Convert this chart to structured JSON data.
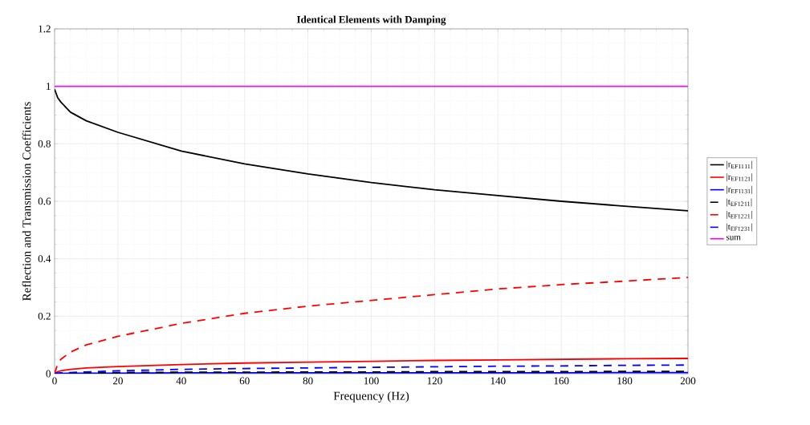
{
  "chart_data": {
    "type": "line",
    "title": "Identical Elements with Damping",
    "xlabel": "Frequency (Hz)",
    "ylabel": "Reflection and Transmission Coefficients",
    "xlim": [
      0,
      200
    ],
    "ylim": [
      0,
      1.2
    ],
    "xticks": [
      0,
      20,
      40,
      60,
      80,
      100,
      120,
      140,
      160,
      180,
      200
    ],
    "yticks": [
      0,
      0.2,
      0.4,
      0.6,
      0.8,
      1,
      1.2
    ],
    "grid": true,
    "legend": "right",
    "x": [
      0,
      1,
      2,
      5,
      10,
      20,
      40,
      60,
      80,
      100,
      120,
      140,
      160,
      180,
      200
    ],
    "series": [
      {
        "name": "|r$_{EF11}$$_{11}$|",
        "color": "#000000",
        "line_style": "solid",
        "values": [
          0.99,
          0.96,
          0.945,
          0.91,
          0.88,
          0.84,
          0.775,
          0.73,
          0.695,
          0.665,
          0.64,
          0.62,
          0.6,
          0.583,
          0.567
        ]
      },
      {
        "name": "|r$_{EF11}$$_{21}$|",
        "color": "#ff0000",
        "line_style": "solid",
        "values": [
          0.0,
          0.007,
          0.01,
          0.015,
          0.02,
          0.025,
          0.032,
          0.037,
          0.04,
          0.043,
          0.046,
          0.048,
          0.05,
          0.052,
          0.053
        ]
      },
      {
        "name": "|r$_{EF11}$$_{31}$|",
        "color": "#0000ff",
        "line_style": "solid",
        "values": [
          0.0,
          0.001,
          0.001,
          0.002,
          0.002,
          0.002,
          0.003,
          0.003,
          0.003,
          0.003,
          0.003,
          0.003,
          0.003,
          0.004,
          0.004
        ]
      },
      {
        "name": "|t$_{EF12}$$_{11}$|",
        "color": "#000000",
        "line_style": "dashed",
        "values": [
          0.0,
          0.001,
          0.001,
          0.002,
          0.003,
          0.004,
          0.005,
          0.005,
          0.006,
          0.006,
          0.007,
          0.007,
          0.007,
          0.008,
          0.008
        ]
      },
      {
        "name": "|t$_{EF12}$$_{21}$|",
        "color": "#ff0000",
        "line_style": "dashed",
        "values": [
          0.0,
          0.035,
          0.05,
          0.075,
          0.1,
          0.13,
          0.175,
          0.21,
          0.235,
          0.255,
          0.275,
          0.295,
          0.31,
          0.322,
          0.335
        ]
      },
      {
        "name": "|t$_{EF12}$$_{31}$|",
        "color": "#0000ff",
        "line_style": "dashed",
        "values": [
          0.0,
          0.002,
          0.003,
          0.004,
          0.006,
          0.01,
          0.015,
          0.018,
          0.02,
          0.022,
          0.024,
          0.026,
          0.027,
          0.029,
          0.03
        ]
      },
      {
        "name": "sum",
        "color": "#ff00ff",
        "line_style": "solid",
        "values": [
          1,
          1,
          1,
          1,
          1,
          1,
          1,
          1,
          1,
          1,
          1,
          1,
          1,
          1,
          1
        ]
      }
    ]
  }
}
